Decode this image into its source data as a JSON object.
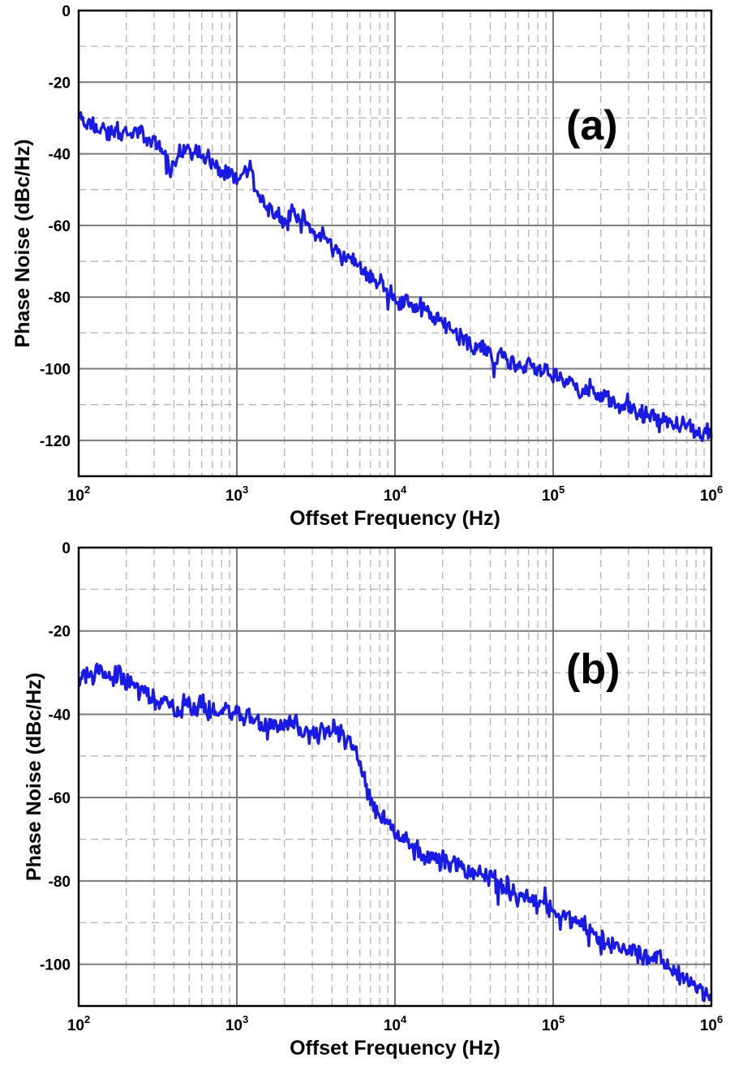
{
  "chart_data": [
    {
      "type": "line",
      "panel_label": "(a)",
      "xlabel": "Offset Frequency (Hz)",
      "ylabel": "Phase Noise (dBc/Hz)",
      "x_scale": "log",
      "xlim": [
        100,
        1000000
      ],
      "ylim": [
        -130,
        0
      ],
      "yticks": [
        0,
        -20,
        -40,
        -60,
        -80,
        -100,
        -120
      ],
      "xtick_labels": [
        {
          "base": "10",
          "exp": "2"
        },
        {
          "base": "10",
          "exp": "3"
        },
        {
          "base": "10",
          "exp": "4"
        },
        {
          "base": "10",
          "exp": "5"
        },
        {
          "base": "10",
          "exp": "6"
        }
      ],
      "grid": true,
      "line_color": "#1a1ae6",
      "series": [
        {
          "x": [
            100,
            120,
            150,
            200,
            250,
            300,
            330,
            380,
            420,
            500,
            600,
            700,
            800,
            900,
            1000,
            1100,
            1200,
            1300,
            1500,
            1800,
            2000,
            2200,
            2500,
            3000,
            3500,
            4000,
            5000,
            6000,
            7000,
            8000,
            10000,
            12000,
            15000,
            20000,
            25000,
            30000,
            35000,
            40000,
            50000,
            60000,
            70000,
            80000,
            100000,
            120000,
            150000,
            200000,
            250000,
            300000,
            400000,
            500000,
            600000,
            700000,
            800000,
            1000000
          ],
          "y": [
            -30,
            -32,
            -34,
            -34,
            -35,
            -36,
            -39,
            -44,
            -40,
            -39,
            -40,
            -42,
            -45,
            -46,
            -48,
            -45,
            -45,
            -49,
            -54,
            -57,
            -59,
            -57,
            -57,
            -62,
            -63,
            -66,
            -69,
            -72,
            -74,
            -76,
            -80,
            -81,
            -84,
            -87,
            -90,
            -92,
            -95,
            -96,
            -97,
            -98,
            -99,
            -100,
            -102,
            -103,
            -106,
            -108,
            -110,
            -111,
            -114,
            -114,
            -116,
            -116,
            -117,
            -119
          ]
        }
      ]
    },
    {
      "type": "line",
      "panel_label": "(b)",
      "xlabel": "Offset Frequency (Hz)",
      "ylabel": "Phase Noise (dBc/Hz)",
      "x_scale": "log",
      "xlim": [
        100,
        1000000
      ],
      "ylim": [
        -110,
        0
      ],
      "yticks": [
        0,
        -20,
        -40,
        -60,
        -80,
        -100
      ],
      "xtick_labels": [
        {
          "base": "10",
          "exp": "2"
        },
        {
          "base": "10",
          "exp": "3"
        },
        {
          "base": "10",
          "exp": "4"
        },
        {
          "base": "10",
          "exp": "5"
        },
        {
          "base": "10",
          "exp": "6"
        }
      ],
      "grid": true,
      "line_color": "#1a1ae6",
      "series": [
        {
          "x": [
            100,
            120,
            150,
            200,
            250,
            300,
            350,
            400,
            500,
            600,
            700,
            800,
            1000,
            1200,
            1500,
            1800,
            2000,
            2500,
            3000,
            3500,
            4000,
            4500,
            5000,
            5500,
            6000,
            7000,
            8000,
            9000,
            10000,
            12000,
            15000,
            20000,
            25000,
            30000,
            40000,
            50000,
            60000,
            70000,
            80000,
            100000,
            120000,
            150000,
            200000,
            250000,
            300000,
            400000,
            500000,
            600000,
            700000,
            800000,
            1000000
          ],
          "y": [
            -32,
            -30,
            -31,
            -32,
            -34,
            -36,
            -37,
            -38,
            -38,
            -38,
            -39,
            -39,
            -39,
            -41,
            -43,
            -43,
            -42,
            -43,
            -45,
            -44,
            -45,
            -45,
            -47,
            -48,
            -53,
            -60,
            -64,
            -66,
            -68,
            -70,
            -74,
            -75,
            -76,
            -78,
            -79,
            -81,
            -83,
            -84,
            -85,
            -87,
            -89,
            -91,
            -93,
            -96,
            -97,
            -98,
            -100,
            -102,
            -104,
            -105,
            -107
          ]
        }
      ]
    }
  ]
}
